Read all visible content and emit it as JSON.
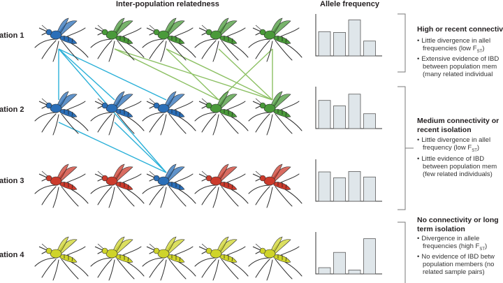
{
  "headers": {
    "relatedness": "Inter-population relatedness",
    "allele_frequency": "Allele frequency"
  },
  "rows": [
    {
      "label": "lation 1",
      "mosquito_colors": [
        "blue",
        "green",
        "green",
        "green",
        "green"
      ],
      "bars": [
        0.62,
        0.6,
        0.92,
        0.38
      ]
    },
    {
      "label": "lation 2",
      "mosquito_colors": [
        "blue",
        "blue",
        "blue",
        "green",
        "green"
      ],
      "bars": [
        0.72,
        0.58,
        0.88,
        0.38
      ]
    },
    {
      "label": "lation 3",
      "mosquito_colors": [
        "red",
        "red",
        "blue",
        "red",
        "red"
      ],
      "bars": [
        0.75,
        0.6,
        0.76,
        0.62
      ]
    },
    {
      "label": "lation 4",
      "mosquito_colors": [
        "yellow",
        "yellow",
        "yellow",
        "yellow",
        "yellow"
      ],
      "bars": [
        0.16,
        0.55,
        0.1,
        0.9
      ]
    }
  ],
  "palette": {
    "blue": "#2b6fb8",
    "green": "#4a9a3a",
    "red": "#cc3b2c",
    "yellow": "#cfd42a",
    "cyan_link": "#2ab0d8",
    "green_link": "#8cc063",
    "bar_fill": "#dfe6ea",
    "bar_stroke": "#5a5a5a"
  },
  "links": {
    "cyan": [
      [
        0,
        0,
        1,
        0
      ],
      [
        0,
        0,
        1,
        1
      ],
      [
        0,
        0,
        1,
        2
      ],
      [
        0,
        0,
        2,
        2
      ],
      [
        1,
        0,
        2,
        2
      ],
      [
        1,
        1,
        2,
        2
      ]
    ],
    "green": [
      [
        0,
        1,
        1,
        3
      ],
      [
        0,
        1,
        1,
        4
      ],
      [
        0,
        2,
        1,
        3
      ],
      [
        0,
        2,
        1,
        4
      ],
      [
        0,
        3,
        1,
        4
      ],
      [
        0,
        4,
        1,
        3
      ],
      [
        0,
        4,
        1,
        4
      ]
    ]
  },
  "panels": [
    {
      "title_lines": [
        "High or recent connectiv"
      ],
      "bullets": [
        [
          "Little divergence in allel",
          "frequencies (low F",
          "ST",
          ")"
        ],
        [
          "Extensive evidence of IBD",
          "between population mem",
          "(many related individual"
        ]
      ]
    },
    {
      "title_lines": [
        "Medium connectivity or",
        "recent isolation"
      ],
      "bullets": [
        [
          "Little divergence in allel",
          "frequency (low F",
          "ST",
          ")"
        ],
        [
          "Little evidence of IBD",
          "between population mem",
          "(few related individuals)"
        ]
      ]
    },
    {
      "title_lines": [
        "No connectivity or long",
        "term isolation"
      ],
      "bullets": [
        [
          "Divergence in allele",
          "frequencies (high F",
          "ST",
          ")"
        ],
        [
          "No evidence of IBD betw",
          "population members (no",
          "related sample pairs)"
        ]
      ]
    }
  ]
}
